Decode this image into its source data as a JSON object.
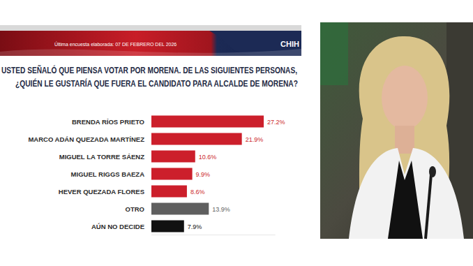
{
  "chart_data": {
    "type": "bar",
    "orientation": "horizontal",
    "annotations": [
      "Última encuesta elaborada: 07 DE FEBRERO DEL 2026",
      "CHIH"
    ],
    "title": "USTED SEÑALÓ QUE PIENSA VOTAR POR MORENA. DE LAS SIGUIENTES PERSONAS,",
    "subtitle": "¿QUIÉN LE GUSTARÍA QUE FUERA EL CANDIDATO PARA ALCALDE DE MORENA?",
    "categories": [
      "BRENDA RÍOS PRIETO",
      "MARCO ADÁN QUEZADA MARTÍNEZ",
      "MIGUEL LA TORRE SÁENZ",
      "MIGUEL RIGGS BAEZA",
      "HEVER QUEZADA FLORES",
      "OTRO",
      "AÚN NO DECIDE"
    ],
    "values": [
      27.2,
      21.9,
      10.6,
      9.9,
      8.6,
      13.9,
      7.9
    ],
    "value_labels": [
      "27.2%",
      "21.9%",
      "10.6%",
      "9.9%",
      "8.6%",
      "13.9%",
      "7.9%"
    ],
    "colors": [
      "#cc1f2b",
      "#cc1f2b",
      "#cc1f2b",
      "#cc1f2b",
      "#cc1f2b",
      "#5f5f5f",
      "#111111"
    ],
    "xlim": [
      0,
      30
    ],
    "data_labels": true,
    "tick_labels": "y",
    "grid": false
  }
}
